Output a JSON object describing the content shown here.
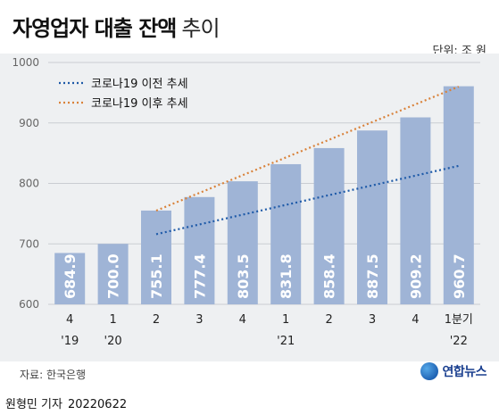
{
  "title_bold": "자영업자 대출 잔액",
  "title_light": "추이",
  "unit_label": "단위: 조 원",
  "source": "자료: 한국은행",
  "logo_text": "연합뉴스",
  "reporter": "원형민 기자",
  "date": "20220622",
  "colors": {
    "panel": "#eef0f2",
    "bar": "#9fb4d6",
    "trend_before": "#1e5aa8",
    "trend_after": "#d9823a"
  },
  "chart_data": {
    "type": "bar",
    "categories": [
      "4",
      "1",
      "2",
      "3",
      "4",
      "1",
      "2",
      "3",
      "4",
      "1분기"
    ],
    "year_labels": [
      "'19",
      "'20",
      "",
      "",
      "",
      "'21",
      "",
      "",
      "",
      "'22"
    ],
    "values": [
      684.9,
      700.0,
      755.1,
      777.4,
      803.5,
      831.8,
      858.4,
      887.5,
      909.2,
      960.7
    ],
    "value_labels": [
      "684.9",
      "700.0",
      "755.1",
      "777.4",
      "803.5",
      "831.8",
      "858.4",
      "887.5",
      "909.2",
      "960.7"
    ],
    "ylim": [
      600,
      1000
    ],
    "yticks": [
      600,
      700,
      800,
      900,
      1000
    ],
    "grid": true,
    "legend_position": "top-left",
    "trend_lines": [
      {
        "name": "코로나19 이전 추세",
        "style": "dotted",
        "from_index": 2,
        "to_index": 9,
        "y_start": 716,
        "y_end": 829
      },
      {
        "name": "코로나19 이후 추세",
        "style": "dotted",
        "from_index": 2,
        "to_index": 9,
        "y_start": 755,
        "y_end": 960
      }
    ]
  }
}
